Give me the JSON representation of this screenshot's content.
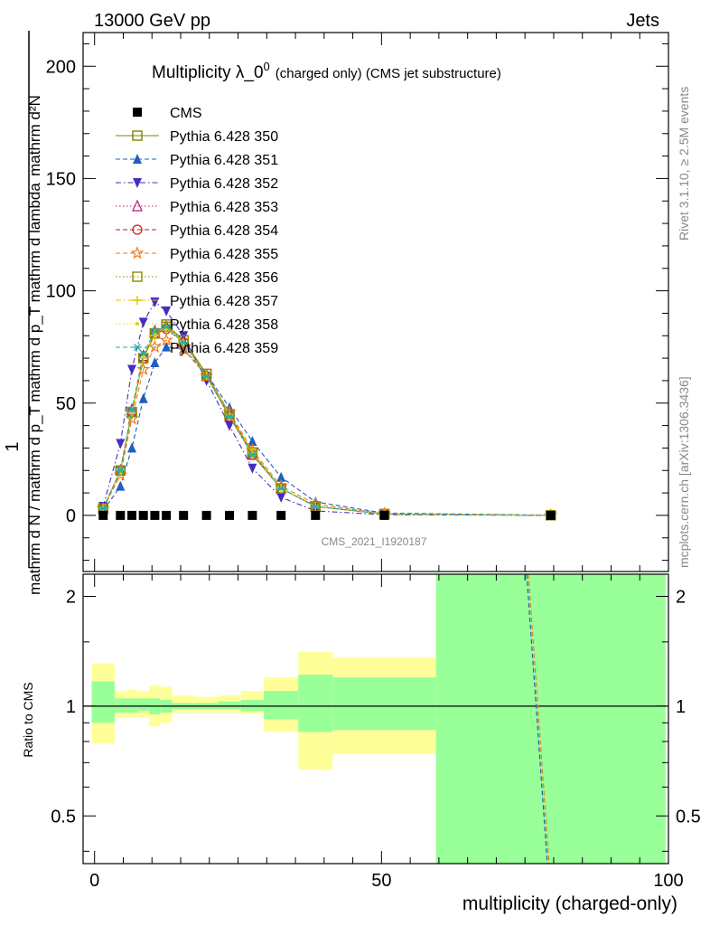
{
  "header": {
    "left_label": "13000 GeV pp",
    "right_label": "Jets"
  },
  "side_labels": {
    "rivet": "Rivet 3.1.10, ≥ 2.5M events",
    "mcplots": "mcplots.cern.ch [arXiv:1306.3436]"
  },
  "colors": {
    "cms": "#000000",
    "s350": "#808000",
    "s351": "#1f5fbf",
    "s352": "#4b2bbf",
    "s353": "#b0207a",
    "s354": "#d01818",
    "s355": "#f07a20",
    "s356": "#8a8a00",
    "s357": "#e0c000",
    "s358": "#d8d800",
    "s359": "#20b0a0",
    "band_inner": "#99ff99",
    "band_outer": "#ffff99"
  },
  "chart_data": [
    {
      "type": "line",
      "title_main": "Multiplicity λ_0",
      "title_sup": "0",
      "title_suffix": "(charged only) (CMS jet substructure)",
      "ylabel_top": "mathrm d²N",
      "ylabel_bottom": "mathrm d N / mathrm d p_T mathrm d p_T mathrm d lambda",
      "ylabel_frac_num": "1",
      "ylabel_frac_den_prefix": "mathrm d N / mathrm d p",
      "ylabel_frac_den_sub": "T",
      "analysis_id": "CMS_2021_I1920187",
      "xlim": [
        -2,
        100
      ],
      "ylim": [
        -25,
        215
      ],
      "yticks": [
        0,
        50,
        100,
        150,
        200
      ],
      "legend_position": "top-left",
      "cms": {
        "name": "CMS",
        "x": [
          1.5,
          4.5,
          6.5,
          8.5,
          10.5,
          12.5,
          15.5,
          19.5,
          23.5,
          27.5,
          32.5,
          38.5,
          50.5,
          79.5
        ],
        "y": [
          0,
          0,
          0,
          0,
          0,
          0,
          0,
          0,
          0,
          0,
          0,
          0,
          0,
          0
        ]
      },
      "x": [
        1.5,
        4.5,
        6.5,
        8.5,
        10.5,
        12.5,
        15.5,
        19.5,
        23.5,
        27.5,
        32.5,
        38.5,
        50.5,
        79.5
      ],
      "series": [
        {
          "key": "s350",
          "name": "Pythia 6.428 350",
          "marker": "square-open",
          "dash": "solid",
          "values": [
            3,
            20,
            46,
            70,
            81,
            85,
            78,
            63,
            45,
            28,
            12,
            4,
            0.6,
            0.05
          ]
        },
        {
          "key": "s351",
          "name": "Pythia 6.428 351",
          "marker": "triangle-up",
          "dash": "dash",
          "values": [
            2,
            13,
            30,
            52,
            68,
            75,
            74,
            63,
            48,
            33,
            17,
            6,
            1,
            0.1
          ]
        },
        {
          "key": "s352",
          "name": "Pythia 6.428 352",
          "marker": "triangle-down",
          "dash": "dashdot",
          "values": [
            4,
            32,
            65,
            86,
            95,
            91,
            80,
            60,
            40,
            21,
            8,
            2,
            0.3,
            0.02
          ]
        },
        {
          "key": "s353",
          "name": "Pythia 6.428 353",
          "marker": "triangle-open",
          "dash": "dot",
          "values": [
            3,
            20,
            47,
            71,
            82,
            84,
            77,
            62,
            44,
            27,
            12,
            4,
            0.6,
            0.05
          ]
        },
        {
          "key": "s354",
          "name": "Pythia 6.428 354",
          "marker": "circle-open",
          "dash": "dash",
          "values": [
            3,
            20,
            46,
            70,
            81,
            83,
            77,
            62,
            44,
            27,
            12,
            4,
            0.6,
            0.05
          ]
        },
        {
          "key": "s355",
          "name": "Pythia 6.428 355",
          "marker": "star-open",
          "dash": "dash",
          "values": [
            3,
            18,
            43,
            65,
            75,
            78,
            74,
            62,
            46,
            29,
            13,
            5,
            0.7,
            0.05
          ]
        },
        {
          "key": "s356",
          "name": "Pythia 6.428 356",
          "marker": "square-open",
          "dash": "dot",
          "values": [
            3,
            20,
            46,
            70,
            81,
            84,
            78,
            63,
            45,
            28,
            12,
            4,
            0.6,
            0.05
          ]
        },
        {
          "key": "s357",
          "name": "Pythia 6.428 357",
          "marker": "cross",
          "dash": "dashdot",
          "values": [
            3,
            20,
            46,
            70,
            80,
            83,
            77,
            62,
            45,
            28,
            12,
            4,
            0.6,
            0.05
          ]
        },
        {
          "key": "s358",
          "name": "Pythia 6.428 358",
          "marker": "dot",
          "dash": "dot",
          "values": [
            3,
            20,
            47,
            71,
            81,
            84,
            77,
            62,
            44,
            27,
            12,
            4,
            0.6,
            0.05
          ]
        },
        {
          "key": "s359",
          "name": "Pythia 6.428 359",
          "marker": "asterisk",
          "dash": "dash",
          "values": [
            3,
            20,
            47,
            72,
            82,
            84,
            77,
            62,
            44,
            27,
            12,
            4,
            0.6,
            0.05
          ]
        }
      ]
    },
    {
      "type": "area",
      "ylabel": "Ratio to CMS",
      "xlabel": "multiplicity (charged-only)",
      "xlim": [
        -2,
        100
      ],
      "ylim": [
        0.37,
        2.3
      ],
      "yscale": "log",
      "yticks": [
        0.5,
        1,
        2
      ],
      "xticks": [
        0,
        50,
        100
      ],
      "bins": [
        {
          "x0": -0.5,
          "x1": 3.5,
          "inner": [
            0.9,
            1.17
          ],
          "outer": [
            0.79,
            1.31
          ]
        },
        {
          "x0": 3.5,
          "x1": 5.5,
          "inner": [
            0.96,
            1.05
          ],
          "outer": [
            0.93,
            1.1
          ]
        },
        {
          "x0": 5.5,
          "x1": 7.5,
          "inner": [
            0.96,
            1.05
          ],
          "outer": [
            0.93,
            1.11
          ]
        },
        {
          "x0": 7.5,
          "x1": 9.5,
          "inner": [
            0.97,
            1.05
          ],
          "outer": [
            0.93,
            1.1
          ]
        },
        {
          "x0": 9.5,
          "x1": 11.5,
          "inner": [
            0.95,
            1.05
          ],
          "outer": [
            0.88,
            1.14
          ]
        },
        {
          "x0": 11.5,
          "x1": 13.5,
          "inner": [
            0.96,
            1.04
          ],
          "outer": [
            0.9,
            1.13
          ]
        },
        {
          "x0": 13.5,
          "x1": 17.5,
          "inner": [
            0.98,
            1.02
          ],
          "outer": [
            0.96,
            1.07
          ]
        },
        {
          "x0": 17.5,
          "x1": 21.5,
          "inner": [
            0.98,
            1.02
          ],
          "outer": [
            0.96,
            1.06
          ]
        },
        {
          "x0": 21.5,
          "x1": 25.5,
          "inner": [
            0.98,
            1.03
          ],
          "outer": [
            0.96,
            1.07
          ]
        },
        {
          "x0": 25.5,
          "x1": 29.5,
          "inner": [
            0.97,
            1.04
          ],
          "outer": [
            0.95,
            1.1
          ]
        },
        {
          "x0": 29.5,
          "x1": 35.5,
          "inner": [
            0.92,
            1.1
          ],
          "outer": [
            0.85,
            1.2
          ]
        },
        {
          "x0": 35.5,
          "x1": 41.5,
          "inner": [
            0.85,
            1.22
          ],
          "outer": [
            0.67,
            1.41
          ]
        },
        {
          "x0": 41.5,
          "x1": 59.5,
          "inner": [
            0.86,
            1.2
          ],
          "outer": [
            0.74,
            1.36
          ]
        },
        {
          "x0": 59.5,
          "x1": 99.5,
          "inner": [
            0.3,
            3.0
          ],
          "outer": [
            0.3,
            3.0
          ]
        }
      ],
      "ratio_lines": [
        {
          "key": "s351",
          "x": [
            75.3,
            78.9
          ],
          "y": [
            2.3,
            0.37
          ]
        },
        {
          "key": "s355",
          "x": [
            75.6,
            79.2
          ],
          "y": [
            2.3,
            0.37
          ]
        }
      ]
    }
  ]
}
